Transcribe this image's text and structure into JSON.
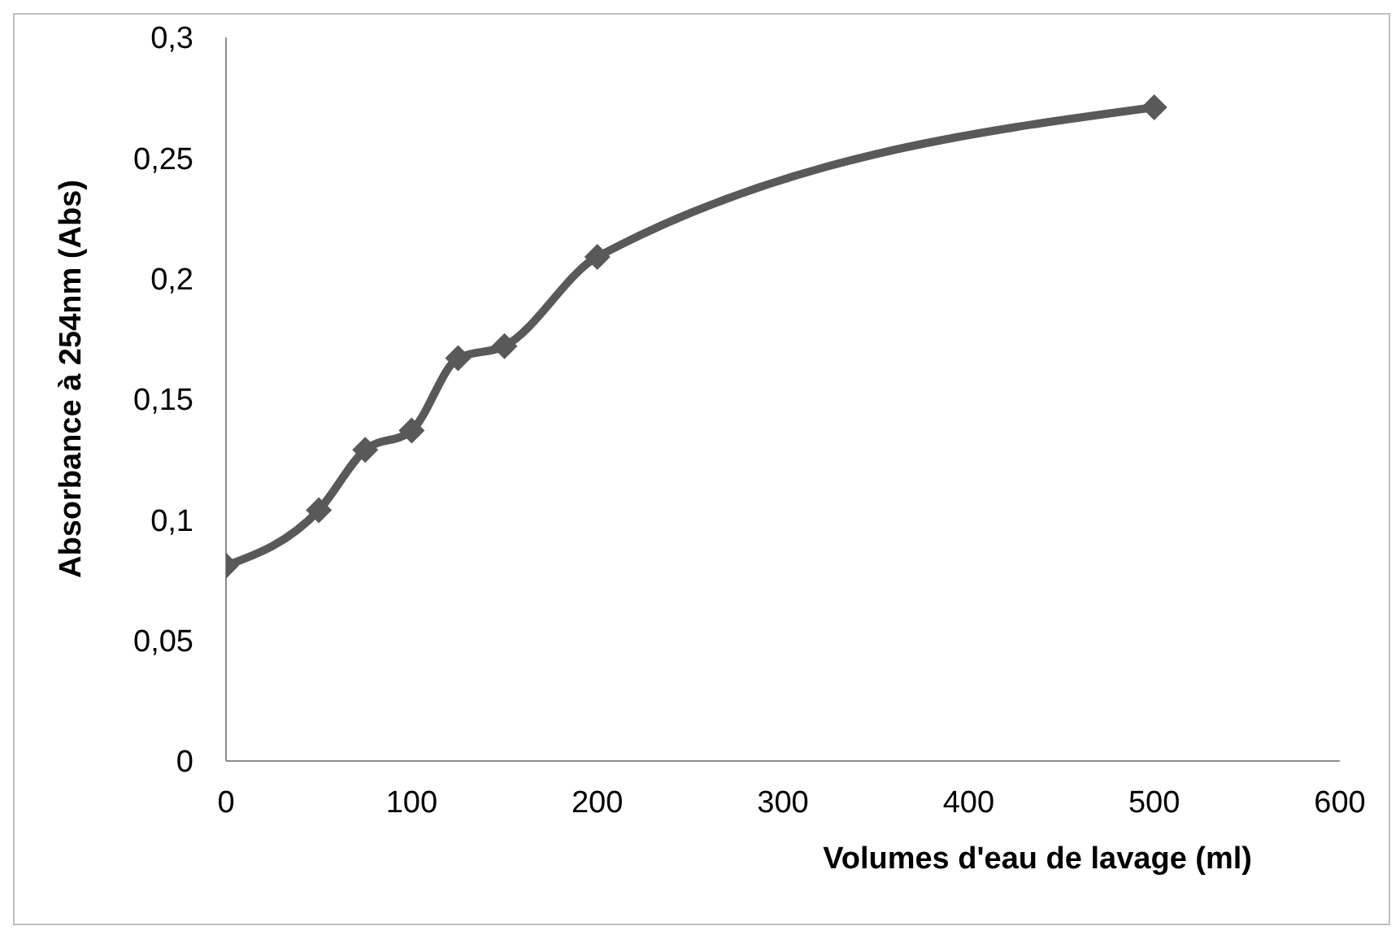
{
  "chart_data": {
    "type": "line",
    "xlabel": "Volumes d'eau de lavage (ml)",
    "ylabel": "Absorbance à 254nm (Abs)",
    "x": [
      0,
      50,
      75,
      100,
      125,
      150,
      200,
      500
    ],
    "series": [
      {
        "color": "#595959",
        "values": [
          0.081,
          0.104,
          0.129,
          0.137,
          0.167,
          0.172,
          0.209,
          0.271
        ]
      }
    ],
    "xlim": [
      0,
      600
    ],
    "xticks": [
      0,
      100,
      200,
      300,
      400,
      500,
      600
    ],
    "ylim": [
      0,
      0.3
    ],
    "yticks": [
      {
        "value": 0,
        "label": "0"
      },
      {
        "value": 0.05,
        "label": "0,05"
      },
      {
        "value": 0.1,
        "label": "0,1"
      },
      {
        "value": 0.15,
        "label": "0,15"
      },
      {
        "value": 0.2,
        "label": "0,2"
      },
      {
        "value": 0.25,
        "label": "0,25"
      },
      {
        "value": 0.3,
        "label": "0,3"
      }
    ],
    "grid": false,
    "legend": false,
    "marker": "diamond",
    "line_style": "solid"
  }
}
